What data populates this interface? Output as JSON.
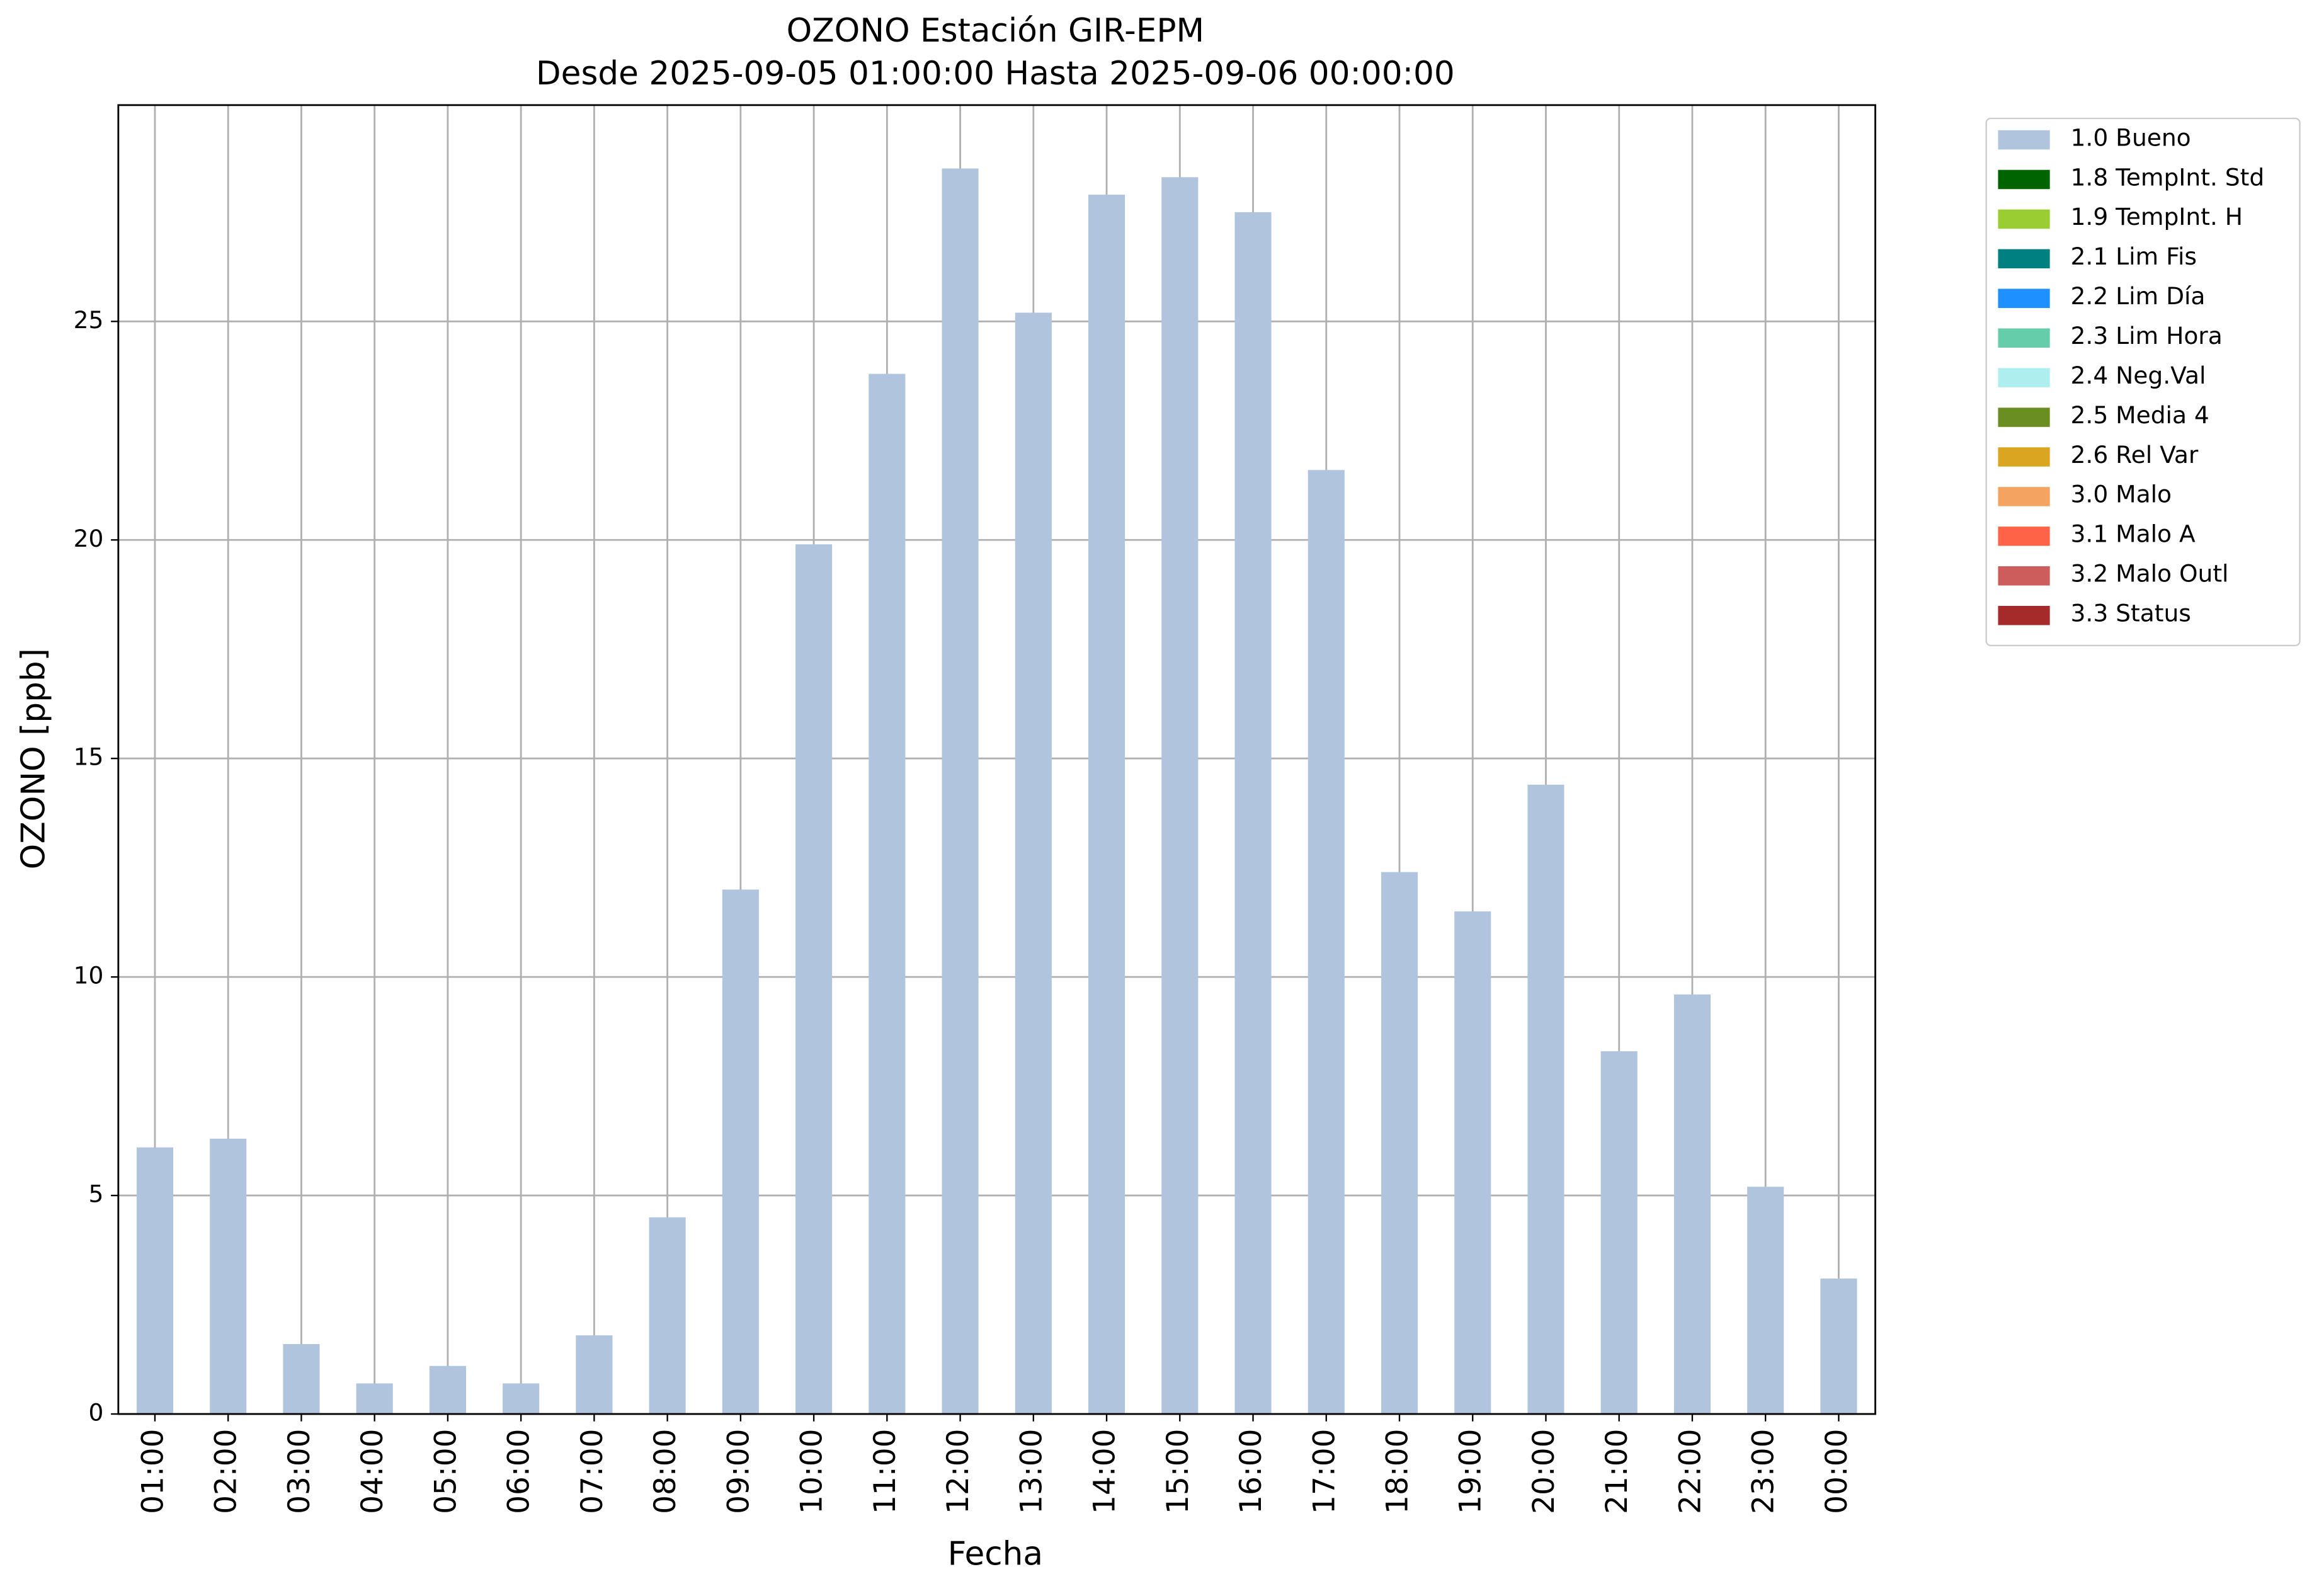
{
  "chart_data": {
    "type": "bar",
    "stacked": true,
    "title": "OZONO Estación GIR-EPM",
    "subtitle": "Desde 2025-09-05 01:00:00 Hasta 2025-09-06 00:00:00",
    "x_label": "Fecha",
    "y_label": "OZONO [ppb]",
    "categories": [
      "01:00",
      "02:00",
      "03:00",
      "04:00",
      "05:00",
      "06:00",
      "07:00",
      "08:00",
      "09:00",
      "10:00",
      "11:00",
      "12:00",
      "13:00",
      "14:00",
      "15:00",
      "16:00",
      "17:00",
      "18:00",
      "19:00",
      "20:00",
      "21:00",
      "22:00",
      "23:00",
      "00:00"
    ],
    "series": [
      {
        "name": "1.0 Bueno",
        "color": "#b0c4de",
        "values": [
          6.1,
          6.3,
          1.6,
          0.7,
          1.1,
          0.7,
          1.8,
          4.5,
          12.0,
          19.9,
          23.8,
          28.5,
          25.2,
          27.9,
          28.3,
          27.5,
          21.6,
          12.4,
          11.5,
          14.4,
          8.3,
          9.6,
          5.2,
          3.1
        ]
      },
      {
        "name": "1.8 TempInt. Std",
        "color": "#006400",
        "values": [
          0,
          0,
          0,
          0,
          0,
          0,
          0,
          0,
          0,
          0,
          0,
          0,
          0,
          0,
          0,
          0,
          0,
          0,
          0,
          0,
          0,
          0,
          0,
          0
        ]
      },
      {
        "name": "1.9 TempInt. H",
        "color": "#9acd32",
        "values": [
          0,
          0,
          0,
          0,
          0,
          0,
          0,
          0,
          0,
          0,
          0,
          0,
          0,
          0,
          0,
          0,
          0,
          0,
          0,
          0,
          0,
          0,
          0,
          0
        ]
      },
      {
        "name": "2.1 Lim Fis",
        "color": "#008080",
        "values": [
          0,
          0,
          0,
          0,
          0,
          0,
          0,
          0,
          0,
          0,
          0,
          0,
          0,
          0,
          0,
          0,
          0,
          0,
          0,
          0,
          0,
          0,
          0,
          0
        ]
      },
      {
        "name": "2.2 Lim Día",
        "color": "#1e90ff",
        "values": [
          0,
          0,
          0,
          0,
          0,
          0,
          0,
          0,
          0,
          0,
          0,
          0,
          0,
          0,
          0,
          0,
          0,
          0,
          0,
          0,
          0,
          0,
          0,
          0
        ]
      },
      {
        "name": "2.3 Lim Hora",
        "color": "#66cdaa",
        "values": [
          0,
          0,
          0,
          0,
          0,
          0,
          0,
          0,
          0,
          0,
          0,
          0,
          0,
          0,
          0,
          0,
          0,
          0,
          0,
          0,
          0,
          0,
          0,
          0
        ]
      },
      {
        "name": "2.4 Neg.Val",
        "color": "#afeeee",
        "values": [
          0,
          0,
          0,
          0,
          0,
          0,
          0,
          0,
          0,
          0,
          0,
          0,
          0,
          0,
          0,
          0,
          0,
          0,
          0,
          0,
          0,
          0,
          0,
          0
        ]
      },
      {
        "name": "2.5 Media 4",
        "color": "#6b8e23",
        "values": [
          0,
          0,
          0,
          0,
          0,
          0,
          0,
          0,
          0,
          0,
          0,
          0,
          0,
          0,
          0,
          0,
          0,
          0,
          0,
          0,
          0,
          0,
          0,
          0
        ]
      },
      {
        "name": "2.6 Rel Var",
        "color": "#daa520",
        "values": [
          0,
          0,
          0,
          0,
          0,
          0,
          0,
          0,
          0,
          0,
          0,
          0,
          0,
          0,
          0,
          0,
          0,
          0,
          0,
          0,
          0,
          0,
          0,
          0
        ]
      },
      {
        "name": "3.0 Malo",
        "color": "#f4a460",
        "values": [
          0,
          0,
          0,
          0,
          0,
          0,
          0,
          0,
          0,
          0,
          0,
          0,
          0,
          0,
          0,
          0,
          0,
          0,
          0,
          0,
          0,
          0,
          0,
          0
        ]
      },
      {
        "name": "3.1 Malo A",
        "color": "#ff6347",
        "values": [
          0,
          0,
          0,
          0,
          0,
          0,
          0,
          0,
          0,
          0,
          0,
          0,
          0,
          0,
          0,
          0,
          0,
          0,
          0,
          0,
          0,
          0,
          0,
          0
        ]
      },
      {
        "name": "3.2 Malo Outl",
        "color": "#cd5c5c",
        "values": [
          0,
          0,
          0,
          0,
          0,
          0,
          0,
          0,
          0,
          0,
          0,
          0,
          0,
          0,
          0,
          0,
          0,
          0,
          0,
          0,
          0,
          0,
          0,
          0
        ]
      },
      {
        "name": "3.3 Status",
        "color": "#a52a2a",
        "values": [
          0,
          0,
          0,
          0,
          0,
          0,
          0,
          0,
          0,
          0,
          0,
          0,
          0,
          0,
          0,
          0,
          0,
          0,
          0,
          0,
          0,
          0,
          0,
          0
        ]
      }
    ],
    "ylim": [
      0,
      29.95
    ],
    "yticks": [
      0,
      5,
      10,
      15,
      20,
      25
    ],
    "grid": true,
    "legend": "outside-right"
  }
}
